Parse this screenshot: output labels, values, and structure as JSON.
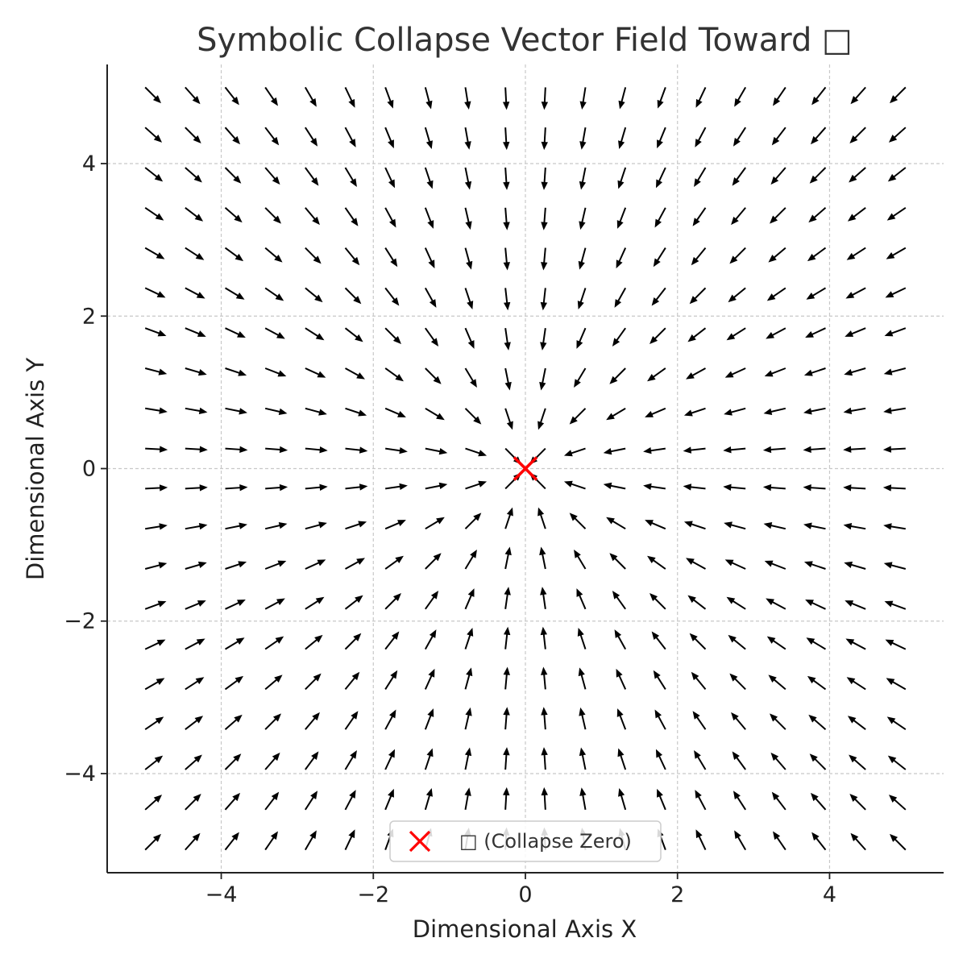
{
  "chart_data": {
    "type": "quiver",
    "title": "Symbolic Collapse Vector Field Toward □",
    "xlabel": "Dimensional Axis X",
    "ylabel": "Dimensional Axis Y",
    "xlim": [
      -5.5,
      5.5
    ],
    "ylim": [
      -5.3,
      5.3
    ],
    "xticks": [
      -4,
      -2,
      0,
      2,
      4
    ],
    "yticks": [
      -4,
      -2,
      0,
      2,
      4
    ],
    "xtick_labels": [
      "−4",
      "−2",
      "0",
      "2",
      "4"
    ],
    "ytick_labels": [
      "−4",
      "−2",
      "0",
      "2",
      "4"
    ],
    "grid": true,
    "grid_style": "dashed",
    "field": {
      "x_range": [
        -5,
        5
      ],
      "y_range": [
        -5,
        5
      ],
      "grid_size": 20,
      "u": "-x / sqrt(x^2 + y^2)",
      "v": "-y / sqrt(x^2 + y^2)",
      "arrow_color": "#000000",
      "arrows_normalized": true
    },
    "markers": [
      {
        "label": "□ (Collapse Zero)",
        "x": 0,
        "y": 0,
        "symbol": "x",
        "color": "#ff0000"
      }
    ],
    "legend": {
      "position": "bottom-center",
      "entries": [
        "□ (Collapse Zero)"
      ]
    }
  }
}
